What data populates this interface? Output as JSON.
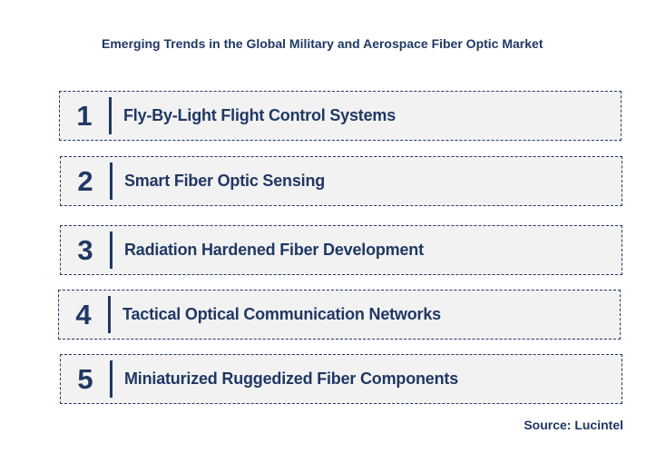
{
  "title": "Emerging Trends in the Global Military and Aerospace Fiber Optic Market",
  "trends": [
    {
      "number": "1",
      "label": "Fly-By-Light Flight Control Systems"
    },
    {
      "number": "2",
      "label": "Smart Fiber Optic Sensing"
    },
    {
      "number": "3",
      "label": "Radiation Hardened Fiber Development"
    },
    {
      "number": "4",
      "label": "Tactical Optical Communication Networks"
    },
    {
      "number": "5",
      "label": "Miniaturized Ruggedized Fiber Components"
    }
  ],
  "source": "Source: Lucintel",
  "colors": {
    "accent": "#1f3864",
    "box_fill": "#f2f2f2",
    "background": "#ffffff"
  }
}
